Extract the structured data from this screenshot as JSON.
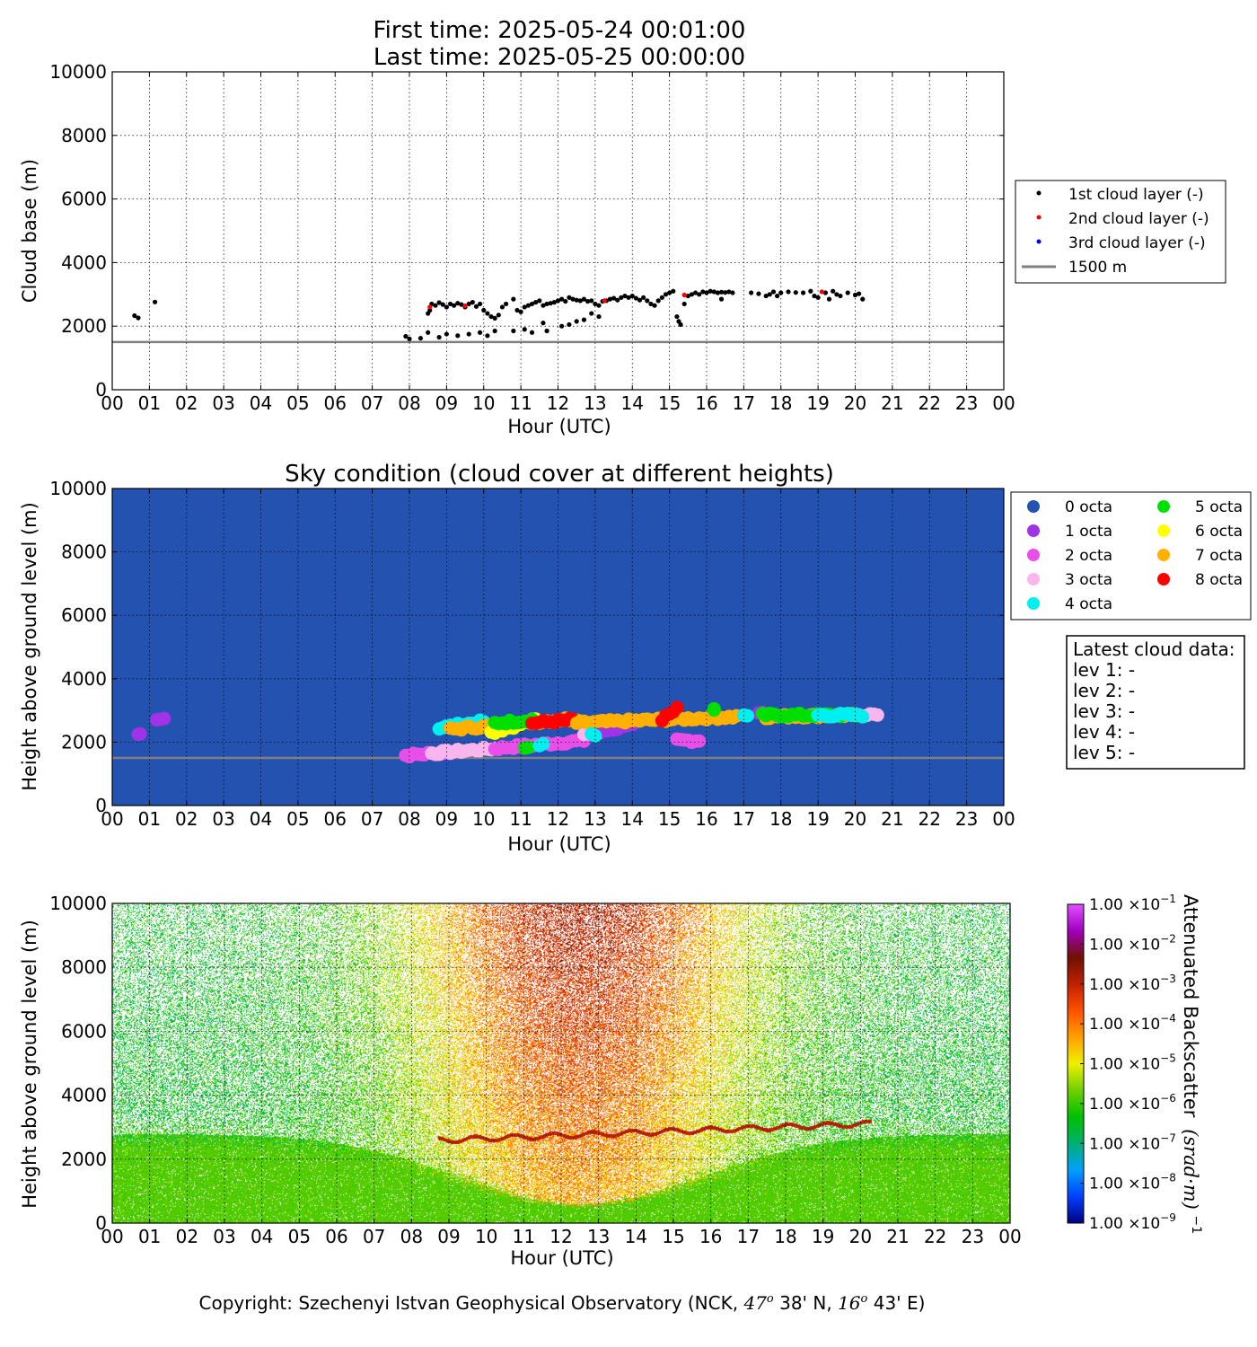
{
  "header": {
    "first_time": "First time: 2025-05-24 00:01:00",
    "last_time": "Last time: 2025-05-25 00:00:00"
  },
  "footer": {
    "copyright_prefix": "Copyright: Szechenyi Istvan Geophysical Observatory (NCK, ",
    "lat_deg": "47",
    "lat_min": " 38' N, ",
    "lon_deg": "16",
    "lon_min": " 43' E)",
    "degree_sup": "o"
  },
  "colors": {
    "sky_background": "#2452b0",
    "threshold_line": "#808080",
    "layer1": "#000000",
    "layer2": "#ff0000",
    "layer3": "#0000ff"
  },
  "chart_data": [
    {
      "id": "cloud-base",
      "type": "scatter",
      "title": "",
      "xlabel": "Hour (UTC)",
      "ylabel": "Cloud base (m)",
      "xlim": [
        0,
        24
      ],
      "ylim": [
        0,
        10000
      ],
      "yticks": [
        0,
        2000,
        4000,
        6000,
        8000,
        10000
      ],
      "xticklabels": [
        "00",
        "01",
        "02",
        "03",
        "04",
        "05",
        "06",
        "07",
        "08",
        "09",
        "10",
        "11",
        "12",
        "13",
        "14",
        "15",
        "16",
        "17",
        "18",
        "19",
        "20",
        "21",
        "22",
        "23",
        "00"
      ],
      "grid": true,
      "legend_position": "right",
      "threshold": {
        "name": "1500 m",
        "value": 1500,
        "color": "#808080"
      },
      "series": [
        {
          "name": "1st cloud layer (-)",
          "color": "#000000",
          "points": [
            [
              0.6,
              2330
            ],
            [
              0.7,
              2260
            ],
            [
              1.15,
              2760
            ],
            [
              7.9,
              1680
            ],
            [
              8.0,
              1600
            ],
            [
              8.3,
              1620
            ],
            [
              8.5,
              1800
            ],
            [
              8.55,
              2500
            ],
            [
              8.6,
              2700
            ],
            [
              8.7,
              2650
            ],
            [
              8.8,
              2740
            ],
            [
              8.9,
              2680
            ],
            [
              9.0,
              2600
            ],
            [
              9.1,
              2700
            ],
            [
              9.2,
              2650
            ],
            [
              9.3,
              2720
            ],
            [
              9.4,
              2680
            ],
            [
              9.5,
              2600
            ],
            [
              9.6,
              2700
            ],
            [
              9.7,
              2750
            ],
            [
              9.8,
              2620
            ],
            [
              9.9,
              2700
            ],
            [
              10.0,
              2500
            ],
            [
              10.1,
              2400
            ],
            [
              10.2,
              2300
            ],
            [
              10.3,
              2250
            ],
            [
              10.4,
              2350
            ],
            [
              10.5,
              2600
            ],
            [
              10.6,
              2700
            ],
            [
              10.8,
              2850
            ],
            [
              10.9,
              2500
            ],
            [
              11.0,
              2450
            ],
            [
              11.1,
              2600
            ],
            [
              11.2,
              2650
            ],
            [
              11.3,
              2700
            ],
            [
              11.4,
              2750
            ],
            [
              11.5,
              2800
            ],
            [
              11.6,
              2650
            ],
            [
              11.7,
              2700
            ],
            [
              11.8,
              2720
            ],
            [
              11.9,
              2750
            ],
            [
              12.0,
              2800
            ],
            [
              12.1,
              2850
            ],
            [
              12.2,
              2780
            ],
            [
              12.3,
              2900
            ],
            [
              12.4,
              2850
            ],
            [
              12.5,
              2820
            ],
            [
              12.6,
              2800
            ],
            [
              12.7,
              2850
            ],
            [
              12.8,
              2780
            ],
            [
              12.9,
              2800
            ],
            [
              13.0,
              2700
            ],
            [
              13.1,
              2650
            ],
            [
              13.2,
              2780
            ],
            [
              13.3,
              2800
            ],
            [
              13.4,
              2850
            ],
            [
              13.5,
              2880
            ],
            [
              13.6,
              2820
            ],
            [
              13.7,
              2900
            ],
            [
              13.8,
              2950
            ],
            [
              13.9,
              2900
            ],
            [
              14.0,
              2950
            ],
            [
              14.1,
              2880
            ],
            [
              14.2,
              2820
            ],
            [
              14.3,
              2900
            ],
            [
              14.4,
              2800
            ],
            [
              14.5,
              2700
            ],
            [
              14.6,
              2650
            ],
            [
              14.7,
              2800
            ],
            [
              14.8,
              2900
            ],
            [
              14.9,
              3000
            ],
            [
              15.0,
              3050
            ],
            [
              15.1,
              3100
            ],
            [
              15.2,
              2300
            ],
            [
              15.25,
              2150
            ],
            [
              15.3,
              2050
            ],
            [
              15.4,
              2700
            ],
            [
              15.5,
              2950
            ],
            [
              15.6,
              3000
            ],
            [
              15.7,
              3050
            ],
            [
              15.8,
              3000
            ],
            [
              15.9,
              3080
            ],
            [
              16.0,
              3050
            ],
            [
              16.1,
              3100
            ],
            [
              16.2,
              3080
            ],
            [
              16.3,
              3050
            ],
            [
              16.4,
              3070
            ],
            [
              16.5,
              3060
            ],
            [
              16.6,
              3080
            ],
            [
              16.7,
              3050
            ],
            [
              16.4,
              2850
            ],
            [
              17.2,
              3050
            ],
            [
              17.4,
              3020
            ],
            [
              17.6,
              2950
            ],
            [
              17.7,
              3000
            ],
            [
              17.8,
              3080
            ],
            [
              17.9,
              2950
            ],
            [
              18.0,
              3050
            ],
            [
              18.2,
              3080
            ],
            [
              18.4,
              3060
            ],
            [
              18.6,
              3050
            ],
            [
              18.8,
              3100
            ],
            [
              18.9,
              2950
            ],
            [
              19.0,
              2900
            ],
            [
              19.2,
              3050
            ],
            [
              19.3,
              2850
            ],
            [
              19.4,
              3100
            ],
            [
              19.5,
              3000
            ],
            [
              19.6,
              2950
            ],
            [
              19.8,
              3050
            ],
            [
              20.0,
              2980
            ],
            [
              20.1,
              3020
            ],
            [
              20.2,
              2850
            ],
            [
              8.5,
              2400
            ],
            [
              8.8,
              1650
            ],
            [
              9.0,
              1750
            ],
            [
              9.3,
              1700
            ],
            [
              9.6,
              1750
            ],
            [
              9.9,
              1800
            ],
            [
              10.1,
              1700
            ],
            [
              10.3,
              1850
            ],
            [
              10.8,
              1850
            ],
            [
              11.1,
              1900
            ],
            [
              11.3,
              1800
            ],
            [
              11.6,
              2100
            ],
            [
              11.7,
              1850
            ],
            [
              12.1,
              2000
            ],
            [
              12.3,
              2050
            ],
            [
              12.5,
              2150
            ],
            [
              12.7,
              2200
            ],
            [
              12.9,
              2400
            ],
            [
              13.1,
              2300
            ]
          ]
        },
        {
          "name": "2nd cloud layer (-)",
          "color": "#ff0000",
          "points": [
            [
              8.55,
              2600
            ],
            [
              9.5,
              2640
            ],
            [
              13.25,
              2800
            ],
            [
              15.4,
              2980
            ],
            [
              19.1,
              3080
            ]
          ]
        },
        {
          "name": "3rd cloud layer (-)",
          "color": "#0000ff",
          "points": []
        }
      ]
    },
    {
      "id": "sky-condition",
      "type": "scatter",
      "title": "Sky condition (cloud cover at different heights)",
      "xlabel": "Hour (UTC)",
      "ylabel": "Height above ground level (m)",
      "xlim": [
        0,
        24
      ],
      "ylim": [
        0,
        10000
      ],
      "yticks": [
        0,
        2000,
        4000,
        6000,
        8000,
        10000
      ],
      "xticklabels": [
        "00",
        "01",
        "02",
        "03",
        "04",
        "05",
        "06",
        "07",
        "08",
        "09",
        "10",
        "11",
        "12",
        "13",
        "14",
        "15",
        "16",
        "17",
        "18",
        "19",
        "20",
        "21",
        "22",
        "23",
        "00"
      ],
      "grid": true,
      "legend_position": "right",
      "threshold": {
        "value": 1500,
        "color": "#808080"
      },
      "octa_legend": [
        {
          "label": "0 octa",
          "color": "#2452b0"
        },
        {
          "label": "1 octa",
          "color": "#a033e8"
        },
        {
          "label": "2 octa",
          "color": "#e84fe8"
        },
        {
          "label": "3 octa",
          "color": "#f9b5ee"
        },
        {
          "label": "4 octa",
          "color": "#00f0f0"
        },
        {
          "label": "5 octa",
          "color": "#00e000"
        },
        {
          "label": "6 octa",
          "color": "#ffff00"
        },
        {
          "label": "7 octa",
          "color": "#ffb000"
        },
        {
          "label": "8 octa",
          "color": "#ff0000"
        }
      ],
      "segments": [
        {
          "octa": 1,
          "x0": 0.7,
          "x1": 0.75,
          "y0": 2250,
          "y1": 2250
        },
        {
          "octa": 1,
          "x0": 1.2,
          "x1": 1.4,
          "y0": 2750,
          "y1": 2750
        },
        {
          "octa": 2,
          "x0": 7.9,
          "x1": 9.2,
          "y0": 1580,
          "y1": 1700
        },
        {
          "octa": 3,
          "x0": 8.6,
          "x1": 10.3,
          "y0": 1650,
          "y1": 1800
        },
        {
          "octa": 2,
          "x0": 10.3,
          "x1": 12.7,
          "y0": 1800,
          "y1": 2050
        },
        {
          "octa": 3,
          "x0": 12.7,
          "x1": 13.1,
          "y0": 2250,
          "y1": 2300
        },
        {
          "octa": 1,
          "x0": 13.1,
          "x1": 14.0,
          "y0": 2350,
          "y1": 2500
        },
        {
          "octa": 2,
          "x0": 15.2,
          "x1": 15.8,
          "y0": 2050,
          "y1": 2050
        },
        {
          "octa": 4,
          "x0": 8.8,
          "x1": 10.0,
          "y0": 2450,
          "y1": 2650
        },
        {
          "octa": 7,
          "x0": 9.1,
          "x1": 12.5,
          "y0": 2400,
          "y1": 2750
        },
        {
          "octa": 6,
          "x0": 10.2,
          "x1": 11.4,
          "y0": 2300,
          "y1": 2700
        },
        {
          "octa": 5,
          "x0": 10.3,
          "x1": 11.3,
          "y0": 2600,
          "y1": 2700
        },
        {
          "octa": 8,
          "x0": 11.3,
          "x1": 12.4,
          "y0": 2600,
          "y1": 2700
        },
        {
          "octa": 7,
          "x0": 12.5,
          "x1": 16.8,
          "y0": 2600,
          "y1": 2800
        },
        {
          "octa": 8,
          "x0": 14.8,
          "x1": 15.2,
          "y0": 2700,
          "y1": 3050
        },
        {
          "octa": 5,
          "x0": 11.1,
          "x1": 11.2,
          "y0": 1850,
          "y1": 1850
        },
        {
          "octa": 4,
          "x0": 11.5,
          "x1": 11.6,
          "y0": 1900,
          "y1": 1900
        },
        {
          "octa": 4,
          "x0": 12.9,
          "x1": 13.0,
          "y0": 2250,
          "y1": 2250
        },
        {
          "octa": 5,
          "x0": 16.2,
          "x1": 16.2,
          "y0": 3050,
          "y1": 3050
        },
        {
          "octa": 1,
          "x0": 17.4,
          "x1": 17.5,
          "y0": 2950,
          "y1": 2950
        },
        {
          "octa": 4,
          "x0": 17.0,
          "x1": 17.1,
          "y0": 2850,
          "y1": 2850
        },
        {
          "octa": 7,
          "x0": 17.6,
          "x1": 19.9,
          "y0": 2800,
          "y1": 2850
        },
        {
          "octa": 5,
          "x0": 17.5,
          "x1": 20.1,
          "y0": 2850,
          "y1": 2850
        },
        {
          "octa": 3,
          "x0": 20.0,
          "x1": 20.6,
          "y0": 2850,
          "y1": 2850
        },
        {
          "octa": 4,
          "x0": 19.0,
          "x1": 20.2,
          "y0": 2850,
          "y1": 2850
        }
      ]
    },
    {
      "id": "backscatter",
      "type": "heatmap",
      "title": "",
      "xlabel": "Hour (UTC)",
      "ylabel": "Height above ground level (m)",
      "xlim": [
        0,
        24
      ],
      "ylim": [
        0,
        10000
      ],
      "yticks": [
        0,
        2000,
        4000,
        6000,
        8000,
        10000
      ],
      "xticklabels": [
        "00",
        "01",
        "02",
        "03",
        "04",
        "05",
        "06",
        "07",
        "08",
        "09",
        "10",
        "11",
        "12",
        "13",
        "14",
        "15",
        "16",
        "17",
        "18",
        "19",
        "20",
        "21",
        "22",
        "23",
        "00"
      ],
      "grid": true,
      "colorbar": {
        "label": "Attenuated Backscatter",
        "unit": "(srad·m)",
        "unit_exponent": "−1",
        "tick_mantissa": "1.00 ×10",
        "tick_exponents": [
          "−9",
          "−8",
          "−7",
          "−6",
          "−5",
          "−4",
          "−3",
          "−2",
          "−1"
        ],
        "log_min": -9,
        "log_max": -1,
        "colors": [
          "#000080",
          "#0040ff",
          "#00a0ff",
          "#00b070",
          "#00c000",
          "#70d000",
          "#f0f000",
          "#ffa000",
          "#ff5000",
          "#c02000",
          "#701000",
          "#a000c0",
          "#e050ff"
        ]
      }
    }
  ]
}
